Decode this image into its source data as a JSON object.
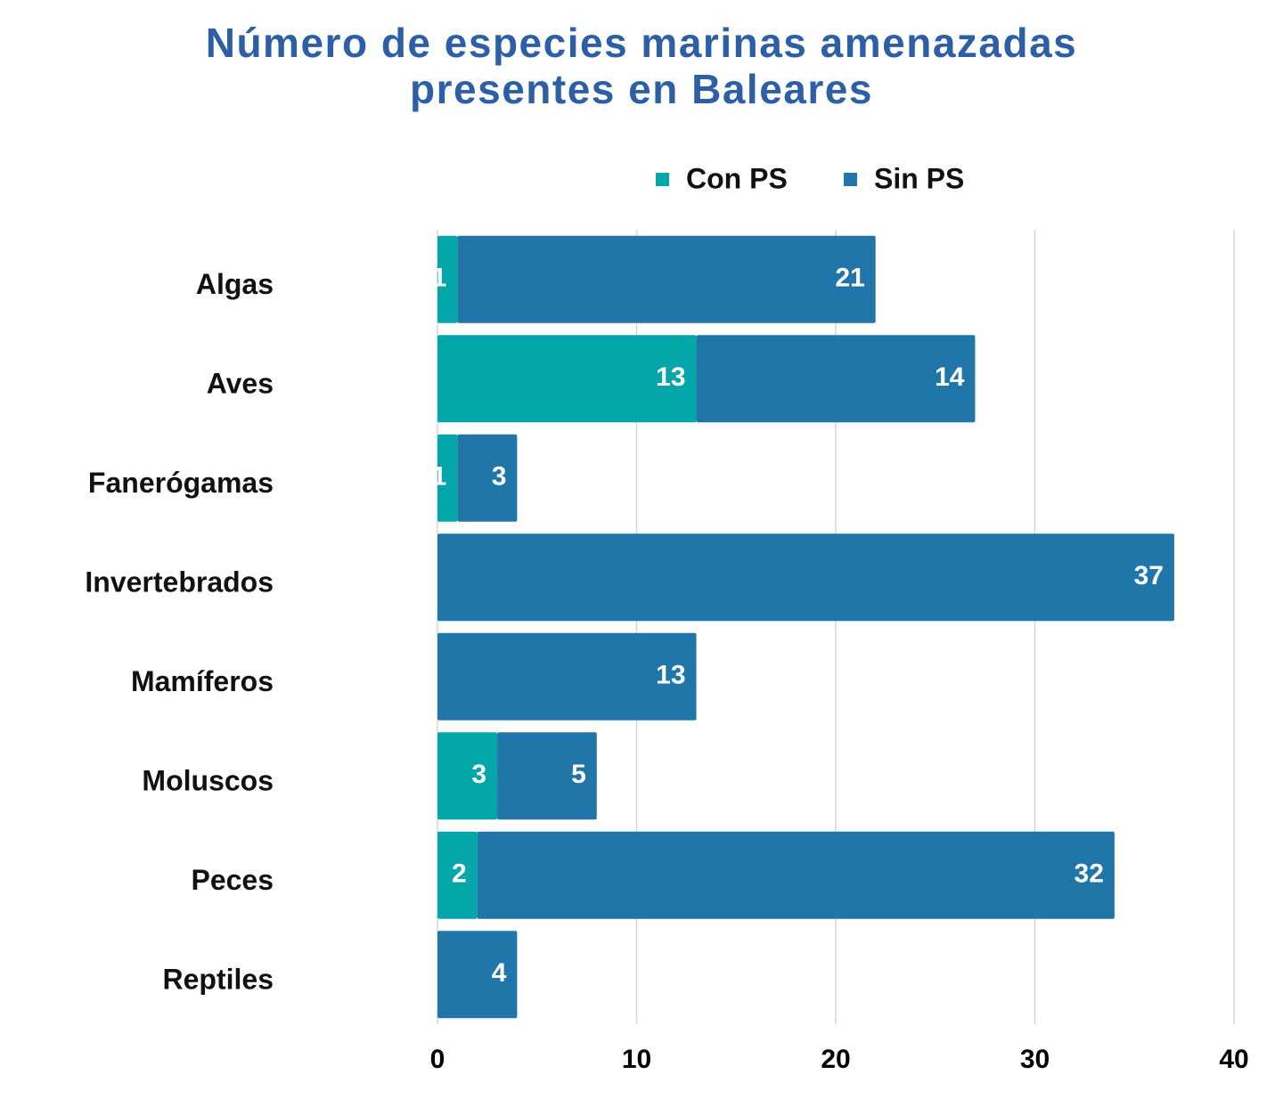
{
  "chart_data": {
    "type": "stacked-bar-horizontal",
    "title": "Número de especies marinas amenazadas presentes en Baleares",
    "categories": [
      "Algas",
      "Aves",
      "Fanerógamas",
      "Invertebrados",
      "Mamíferos",
      "Moluscos",
      "Peces",
      "Reptiles"
    ],
    "series": [
      {
        "name": "Con PS",
        "color": "#03a7a9",
        "values": [
          1,
          13,
          1,
          null,
          null,
          3,
          2,
          null
        ]
      },
      {
        "name": "Sin PS",
        "color": "#2176a9",
        "values": [
          21,
          14,
          3,
          37,
          13,
          5,
          32,
          4
        ]
      }
    ],
    "xlim": [
      0,
      40
    ],
    "xticks": [
      0,
      10,
      20,
      30,
      40
    ],
    "grid": true,
    "legend": "top"
  }
}
